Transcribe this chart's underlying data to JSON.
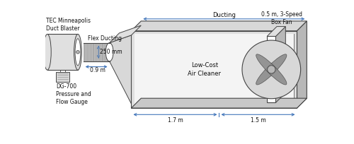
{
  "bg_color": "#ffffff",
  "arrow_color": "#4477bb",
  "line_color": "#444444",
  "gray_light": "#e0e0e0",
  "gray_mid": "#b8b8b8",
  "gray_dark": "#888888",
  "gray_fill": "#d8d8d8",
  "gray_inner": "#c8c8c8",
  "flex_fill": "#bebebe",
  "text_color": "#111111",
  "labels": {
    "tec": "TEC Minneapolis\nDuct Blaster",
    "flex": "Flex Ducting",
    "dim_250": "250 mm",
    "dim_09": "0.9 m",
    "dim_17": "1.7 m",
    "dim_15": "1.5 m",
    "ducting": "Ducting",
    "low_cost": "Low-Cost\nAir Cleaner",
    "box_fan": "0.5 m, 3-Speed\nBox Fan",
    "dg700": "DG-700\nPressure and\nFlow Gauge"
  }
}
